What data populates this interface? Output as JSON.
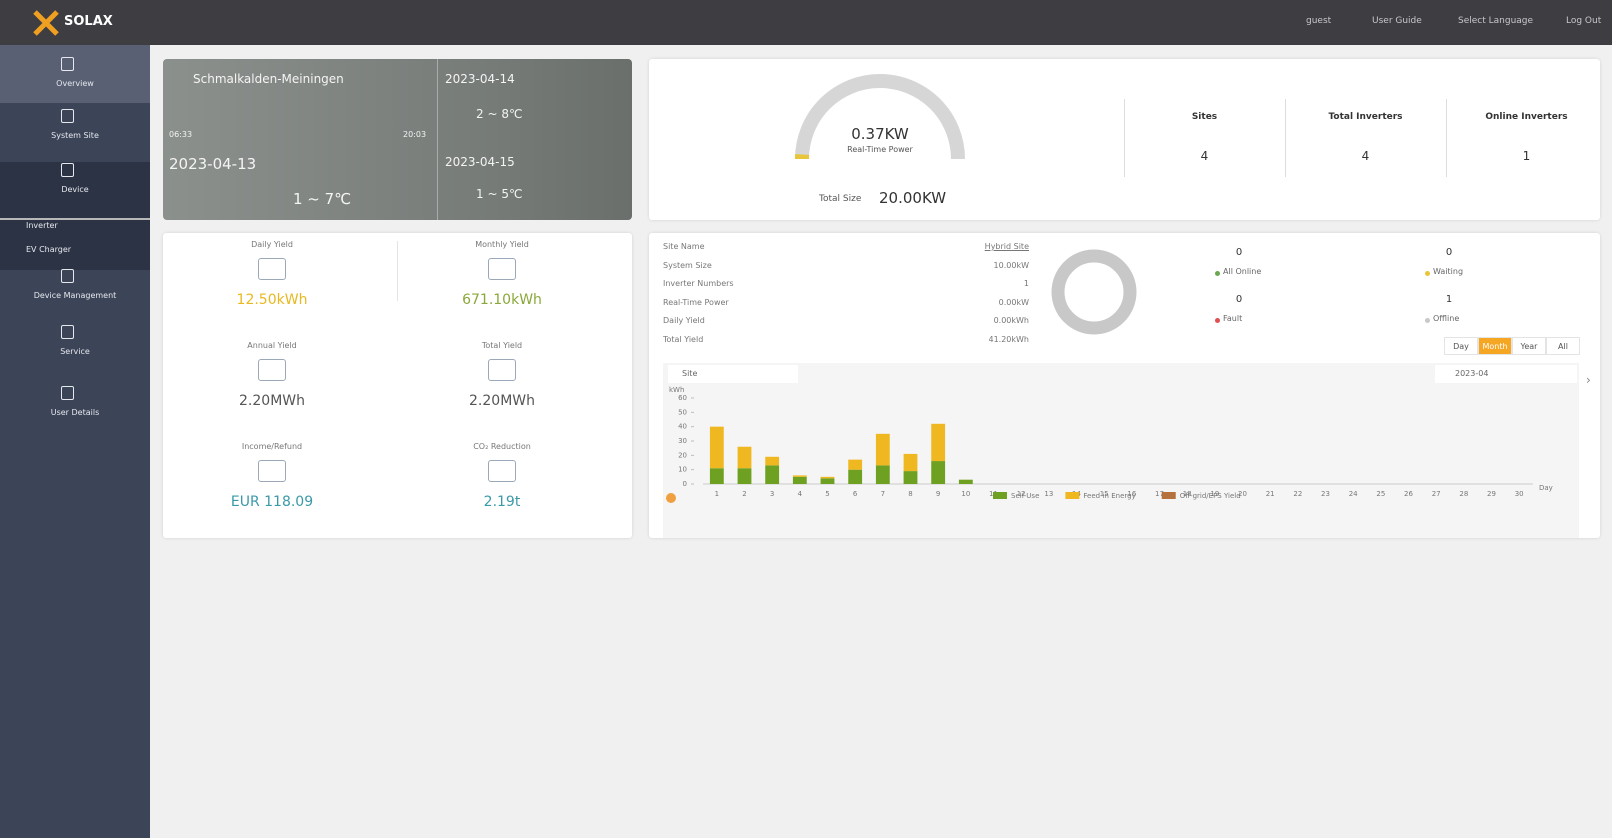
{
  "header": {
    "logo": "SOLAX",
    "user": "guest",
    "user_guide": "User Guide",
    "language": "Select Language",
    "logout": "Log Out"
  },
  "sidebar": {
    "items": [
      "Overview",
      "System Site",
      "Device",
      "Inverter",
      "EV Charger",
      "Device Management",
      "Service",
      "User Details"
    ]
  },
  "weather": {
    "location": "Schmalkalden-Meiningen",
    "sunrise": "06:33",
    "sunset": "20:03",
    "today": {
      "date": "2023-04-13",
      "temp": "1 ~ 7℃"
    },
    "forecast": [
      {
        "date": "2023-04-14",
        "temp": "2 ~ 8℃"
      },
      {
        "date": "2023-04-15",
        "temp": "1 ~ 5℃"
      }
    ]
  },
  "gauge": {
    "value": 0.37,
    "value_label": "0.37KW",
    "label": "Real-Time Power",
    "max_title": "Total Size",
    "max": 20,
    "max_label": "20.00KW",
    "color": "#e8c53a",
    "track": "#d6d6d6"
  },
  "stats": [
    {
      "label": "Sites",
      "value": 4
    },
    {
      "label": "Total Inverters",
      "value": 4
    },
    {
      "label": "Online Inverters",
      "value": 1
    }
  ],
  "yields": [
    {
      "label": "Daily Yield",
      "value": "12.50kWh",
      "color": "#e9b820"
    },
    {
      "label": "Monthly Yield",
      "value": "671.10kWh",
      "color": "#8aa83a"
    },
    {
      "label": "Annual Yield",
      "value": "2.20MWh",
      "color": "#555555"
    },
    {
      "label": "Total Yield",
      "value": "2.20MWh",
      "color": "#555555"
    },
    {
      "label": "Income/Refund",
      "value": "EUR 118.09",
      "color": "#3a9aa8"
    },
    {
      "label": "CO₂ Reduction",
      "value": "2.19t",
      "color": "#3a9aa8"
    }
  ],
  "site_info": [
    [
      "Site Name",
      "Hybrid Site"
    ],
    [
      "System Size",
      "10.00kW"
    ],
    [
      "Inverter Numbers",
      "1"
    ],
    [
      "Real-Time Power",
      "0.00kW"
    ],
    [
      "Daily Yield",
      "0.00kWh"
    ],
    [
      "Total Yield",
      "41.20kWh"
    ]
  ],
  "status": [
    {
      "label": "All Online",
      "value": 0,
      "color": "#6aa84f"
    },
    {
      "label": "Waiting",
      "value": 0,
      "color": "#e8c53a"
    },
    {
      "label": "Fault",
      "value": 0,
      "color": "#e05050"
    },
    {
      "label": "Offline",
      "value": 1,
      "color": "#c8c8c8"
    }
  ],
  "range_tabs": [
    "Day",
    "Month",
    "Year",
    "All"
  ],
  "active_tab": 1,
  "site_select": "Site",
  "date_select": "2023-04",
  "chart_data": {
    "type": "bar",
    "stacked": true,
    "y_label": "kWh",
    "x_label": "Day",
    "categories": [
      "1",
      "2",
      "3",
      "4",
      "5",
      "6",
      "7",
      "8",
      "9",
      "10",
      "11",
      "12",
      "13",
      "14",
      "15",
      "16",
      "17",
      "18",
      "19",
      "20",
      "21",
      "22",
      "23",
      "24",
      "25",
      "26",
      "27",
      "28",
      "29",
      "30"
    ],
    "series": [
      {
        "name": "Self-Use",
        "color": "#6ea021",
        "values": [
          11,
          11,
          13,
          5,
          4,
          10,
          13,
          9,
          16,
          3,
          null,
          null,
          null,
          null,
          null,
          null,
          null,
          null,
          null,
          null,
          null,
          null,
          null,
          null,
          null,
          null,
          null,
          null,
          null,
          null
        ]
      },
      {
        "name": "Feed-in Energy",
        "color": "#f0b820",
        "values": [
          29,
          15,
          6,
          1,
          1,
          7,
          22,
          12,
          26,
          0,
          null,
          null,
          null,
          null,
          null,
          null,
          null,
          null,
          null,
          null,
          null,
          null,
          null,
          null,
          null,
          null,
          null,
          null,
          null,
          null
        ]
      },
      {
        "name": "Off-grid/EPS Yield",
        "color": "#b5713e",
        "values": [
          0,
          0,
          0,
          0,
          0,
          0,
          0,
          0,
          0,
          0,
          null,
          null,
          null,
          null,
          null,
          null,
          null,
          null,
          null,
          null,
          null,
          null,
          null,
          null,
          null,
          null,
          null,
          null,
          null,
          null
        ]
      }
    ],
    "ylim": [
      0,
      60
    ],
    "yticks": [
      0,
      10,
      20,
      30,
      40,
      50,
      60
    ],
    "grid": false
  }
}
